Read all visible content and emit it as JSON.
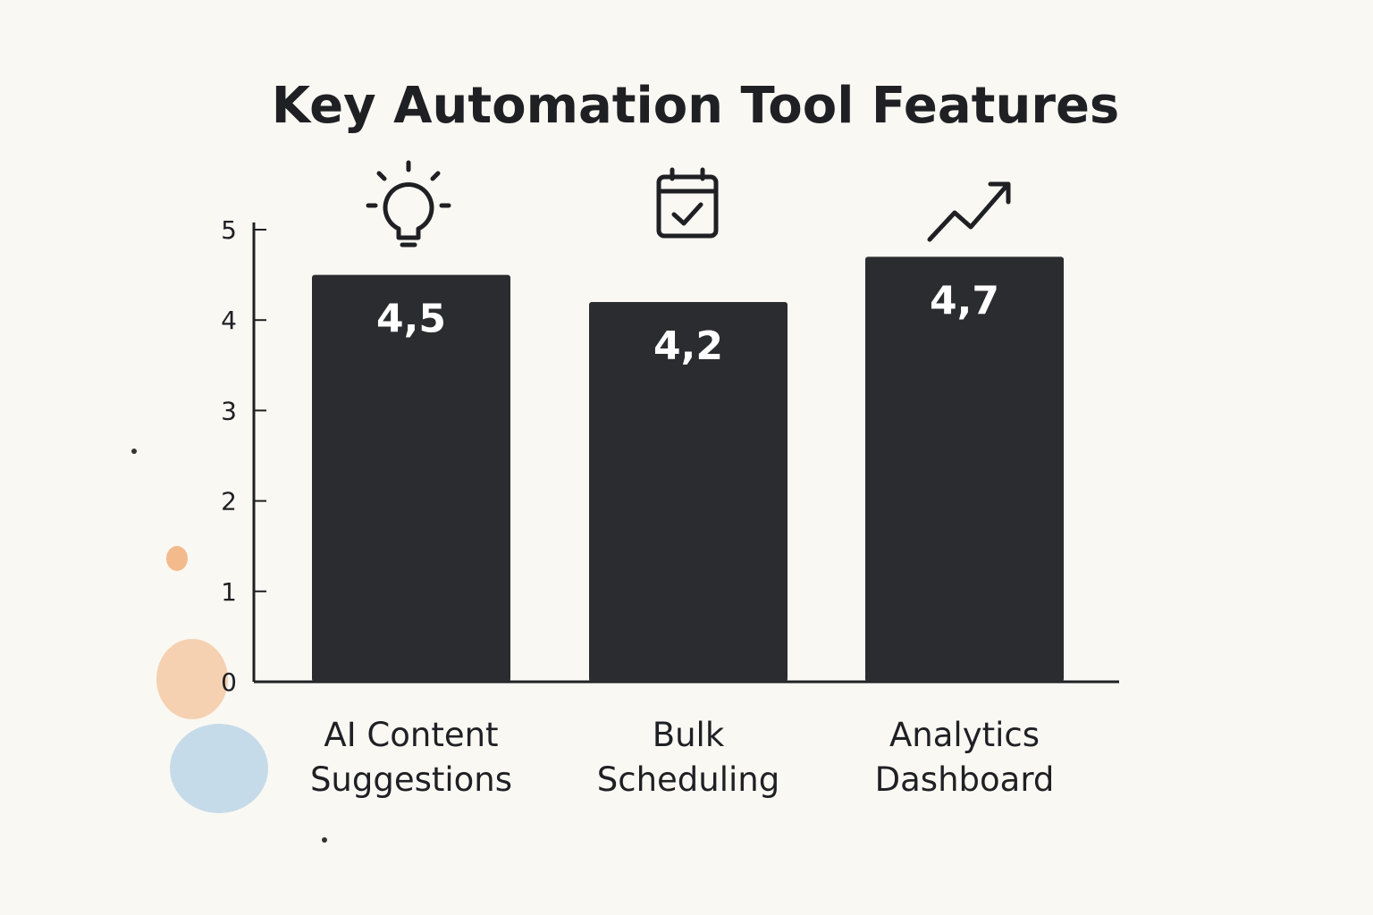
{
  "chart_data": {
    "type": "bar",
    "title": "Key Automation Tool Features",
    "categories": [
      "AI Content Suggestions",
      "Bulk Scheduling",
      "Analytics Dashboard"
    ],
    "values": [
      4.5,
      4.2,
      4.7
    ],
    "value_labels": [
      "4,5",
      "4,2",
      "4,7"
    ],
    "color": "#2b2c2f",
    "ylim": [
      0,
      5
    ],
    "yticks": [
      0,
      1,
      2,
      3,
      4,
      5
    ],
    "grid": false
  }
}
